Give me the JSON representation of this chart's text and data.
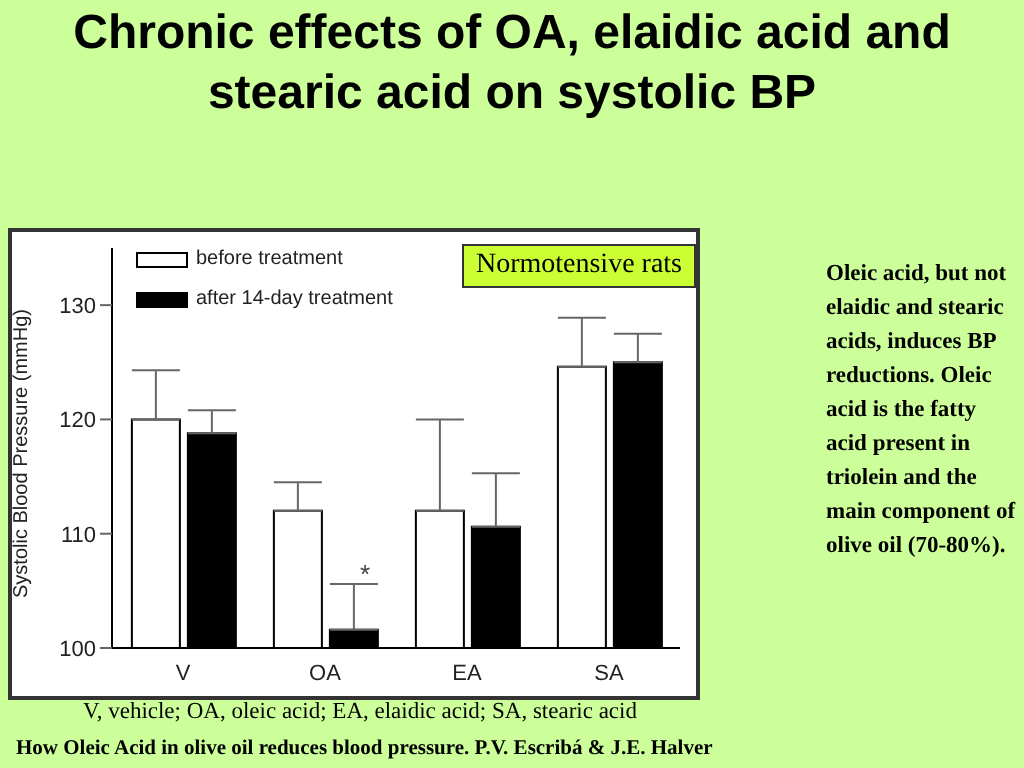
{
  "chart_data": {
    "type": "bar",
    "title": "Chronic effects of OA, elaidic acid and stearic acid on systolic BP",
    "ylabel": "Systolic Blood Pressure (mmHg)",
    "categories": [
      "V",
      "OA",
      "EA",
      "SA"
    ],
    "series": [
      {
        "name": "before treatment",
        "color": "#ffffff",
        "values": [
          120,
          112,
          112,
          124.6
        ],
        "errors": [
          [
            120,
            124.3
          ],
          [
            112,
            114.5
          ],
          [
            112,
            120
          ],
          [
            124.6,
            128.9
          ]
        ]
      },
      {
        "name": "after 14-day treatment",
        "color": "#000000",
        "values": [
          118.8,
          101.6,
          110.6,
          125
        ],
        "errors": [
          [
            118.8,
            120.8
          ],
          [
            101.6,
            105.6
          ],
          [
            110.6,
            115.3
          ],
          [
            125,
            127.5
          ]
        ]
      }
    ],
    "ylim": [
      100,
      135
    ],
    "yticks": [
      100,
      110,
      120,
      130
    ],
    "grid": false,
    "legend": "top left",
    "annotations": [
      "Normotensive rats",
      {
        "text": "*",
        "x": "OA",
        "y": 106.5
      },
      "Oleic acid, but not elaidic and stearic acids, induces BP reductions. Oleic acid is the fatty acid present in triolein and the main component of olive oil (70-80%).",
      "V, vehicle; OA, oleic acid; EA, elaidic acid; SA, stearic acid",
      "How Oleic Acid in olive oil reduces blood pressure. P.V. Escribá & J.E. Halver"
    ]
  }
}
